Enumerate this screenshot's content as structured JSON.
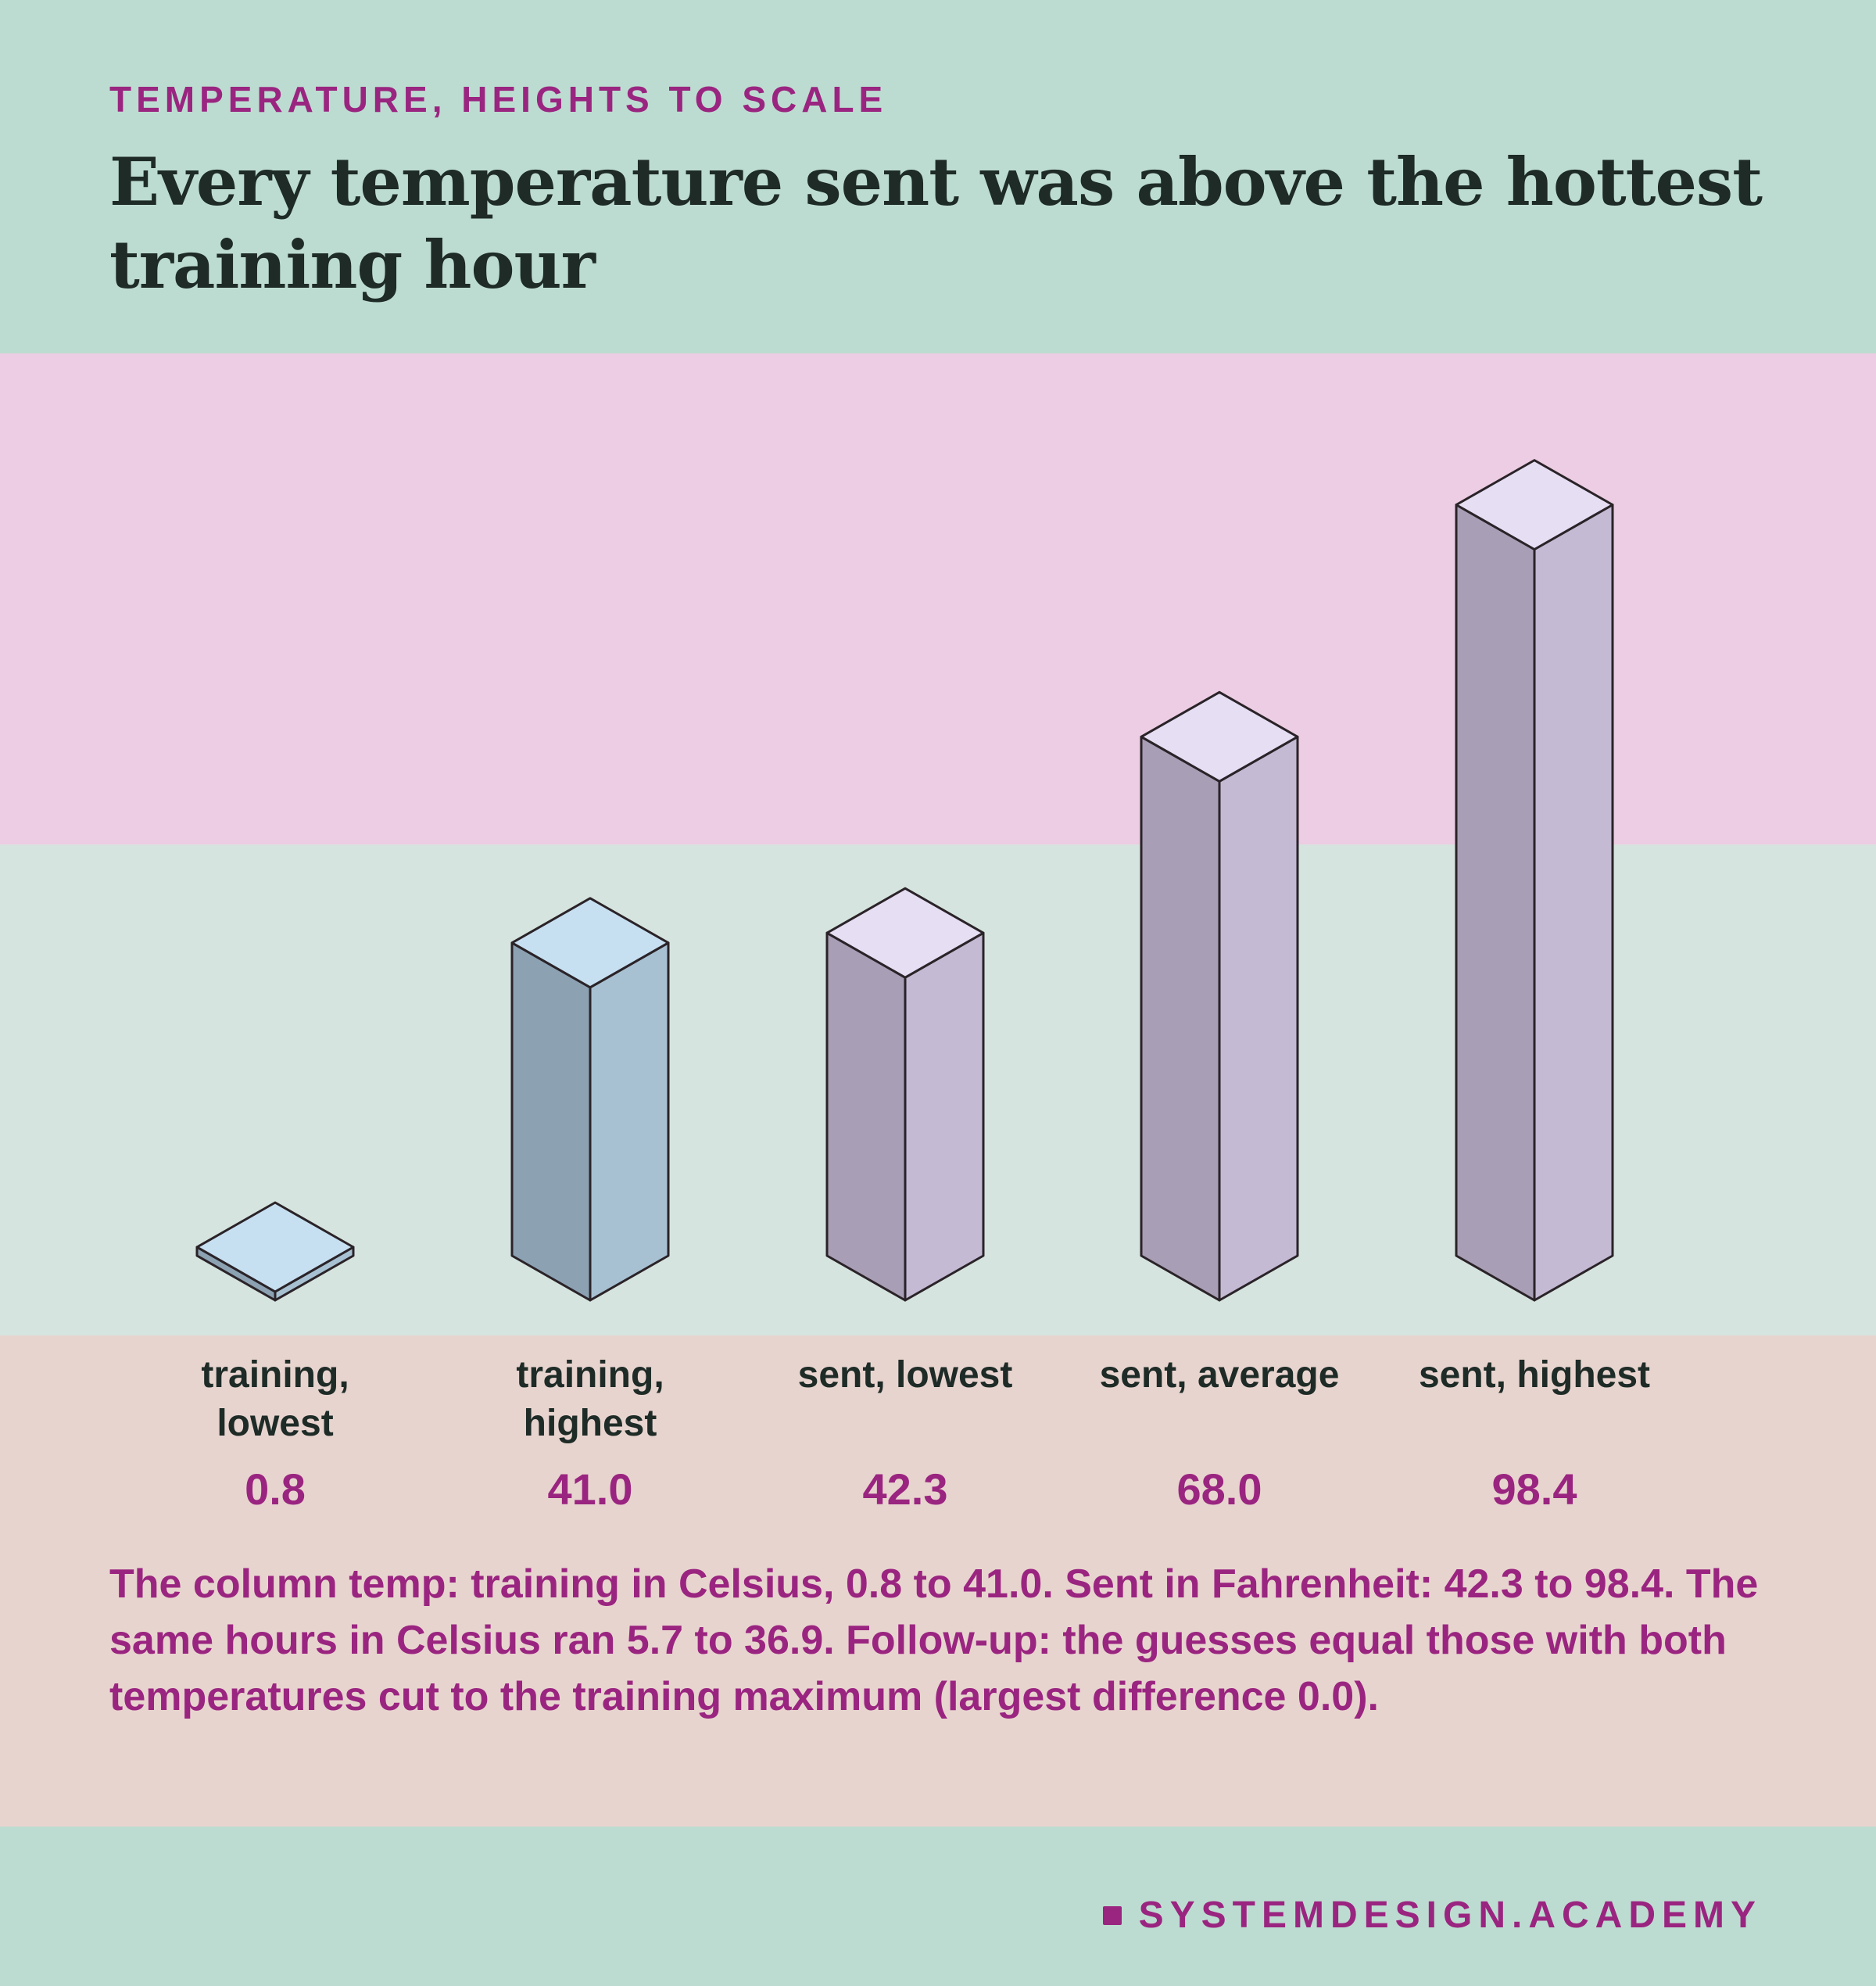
{
  "header": {
    "kicker": "TEMPERATURE, HEIGHTS TO SCALE",
    "title": "Every temperature sent was above the hottest training hour"
  },
  "chart_data": {
    "type": "bar",
    "categories": [
      "training,\nlowest",
      "training,\nhighest",
      "sent, lowest",
      "sent, average",
      "sent, highest"
    ],
    "values": [
      0.8,
      41.0,
      42.3,
      68.0,
      98.4
    ],
    "value_labels": [
      "0.8",
      "41.0",
      "42.3",
      "68.0",
      "98.4"
    ],
    "groups": [
      "training",
      "training",
      "sent",
      "sent",
      "sent"
    ],
    "ylim": [
      0,
      100
    ],
    "grid": false,
    "colors": {
      "training": {
        "top": "#c7e0f1",
        "left": "#8ca2b3",
        "right": "#a7c1d2"
      },
      "sent": {
        "top": "#e6def3",
        "left": "#a89eb5",
        "right": "#c4bad4"
      },
      "stroke": "#2a2328"
    }
  },
  "caption": "The column temp: training in Celsius, 0.8 to 41.0. Sent in Fahrenheit: 42.3 to 98.4. The same hours in Celsius ran 5.7 to 36.9. Follow-up: the guesses equal those with both temperatures cut to the training maximum (largest difference 0.0).",
  "footer": {
    "brand": "SYSTEMDESIGN.ACADEMY"
  }
}
